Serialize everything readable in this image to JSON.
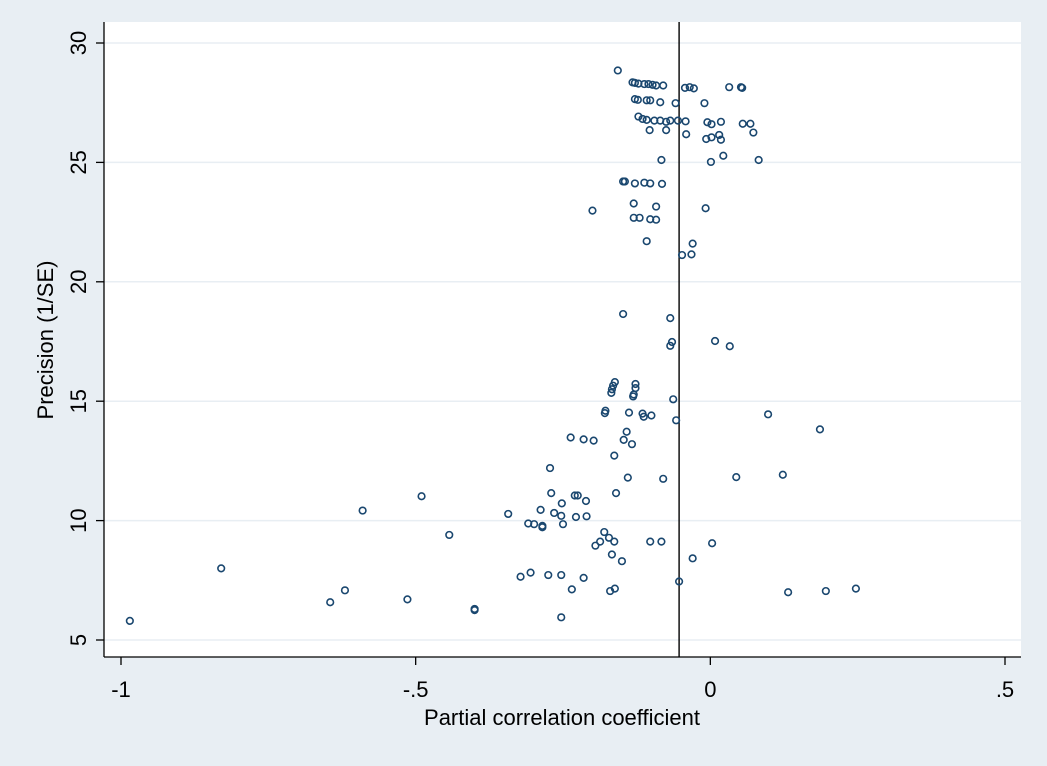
{
  "chart_data": {
    "type": "scatter",
    "title": "",
    "xlabel": "Partial correlation coefficient",
    "ylabel": "Precision (1/SE)",
    "xlim": [
      -1,
      0.5
    ],
    "ylim": [
      5,
      30
    ],
    "xticks": [
      {
        "value": -1,
        "label": "-1"
      },
      {
        "value": -0.5,
        "label": "-.5"
      },
      {
        "value": 0,
        "label": "0"
      },
      {
        "value": 0.5,
        "label": ".5"
      }
    ],
    "yticks": [
      {
        "value": 5,
        "label": "5"
      },
      {
        "value": 10,
        "label": "10"
      },
      {
        "value": 15,
        "label": "15"
      },
      {
        "value": 20,
        "label": "20"
      },
      {
        "value": 25,
        "label": "25"
      },
      {
        "value": 30,
        "label": "30"
      }
    ],
    "grid": "horizontal",
    "reference_line_x": -0.053,
    "colors": {
      "background": "#e8eef3",
      "plot_area": "#ffffff",
      "gridline": "#e8eef3",
      "marker": "#1a476f",
      "reference_line": "#000000"
    },
    "points": [
      [
        -0.157,
        28.85
      ],
      [
        -0.132,
        28.35
      ],
      [
        -0.128,
        28.33
      ],
      [
        -0.122,
        28.3
      ],
      [
        -0.112,
        28.28
      ],
      [
        -0.105,
        28.28
      ],
      [
        -0.098,
        28.25
      ],
      [
        -0.092,
        28.22
      ],
      [
        -0.08,
        28.22
      ],
      [
        -0.043,
        28.12
      ],
      [
        -0.035,
        28.15
      ],
      [
        -0.028,
        28.1
      ],
      [
        0.032,
        28.15
      ],
      [
        0.052,
        28.15
      ],
      [
        0.054,
        28.12
      ],
      [
        -0.128,
        27.65
      ],
      [
        -0.123,
        27.62
      ],
      [
        -0.108,
        27.6
      ],
      [
        -0.102,
        27.6
      ],
      [
        -0.085,
        27.52
      ],
      [
        -0.059,
        27.48
      ],
      [
        -0.01,
        27.48
      ],
      [
        -0.122,
        26.92
      ],
      [
        -0.115,
        26.82
      ],
      [
        -0.108,
        26.78
      ],
      [
        -0.095,
        26.75
      ],
      [
        -0.085,
        26.75
      ],
      [
        -0.075,
        26.7
      ],
      [
        -0.068,
        26.75
      ],
      [
        -0.055,
        26.75
      ],
      [
        -0.042,
        26.72
      ],
      [
        -0.005,
        26.68
      ],
      [
        0.002,
        26.6
      ],
      [
        0.018,
        26.7
      ],
      [
        0.055,
        26.62
      ],
      [
        0.068,
        26.62
      ],
      [
        -0.103,
        26.35
      ],
      [
        -0.075,
        26.35
      ],
      [
        -0.041,
        26.18
      ],
      [
        0.015,
        26.15
      ],
      [
        0.073,
        26.25
      ],
      [
        -0.007,
        25.98
      ],
      [
        0.002,
        26.05
      ],
      [
        0.018,
        25.95
      ],
      [
        0.022,
        25.28
      ],
      [
        -0.083,
        25.1
      ],
      [
        0.001,
        25.02
      ],
      [
        0.082,
        25.1
      ],
      [
        -0.148,
        24.2
      ],
      [
        -0.145,
        24.2
      ],
      [
        -0.128,
        24.12
      ],
      [
        -0.112,
        24.15
      ],
      [
        -0.102,
        24.12
      ],
      [
        -0.082,
        24.1
      ],
      [
        -0.13,
        23.28
      ],
      [
        -0.092,
        23.15
      ],
      [
        -0.2,
        22.98
      ],
      [
        -0.008,
        23.08
      ],
      [
        -0.13,
        22.68
      ],
      [
        -0.12,
        22.68
      ],
      [
        -0.102,
        22.62
      ],
      [
        -0.092,
        22.6
      ],
      [
        -0.108,
        21.7
      ],
      [
        -0.03,
        21.6
      ],
      [
        -0.048,
        21.12
      ],
      [
        -0.032,
        21.15
      ],
      [
        -0.148,
        18.65
      ],
      [
        -0.068,
        18.48
      ],
      [
        0.008,
        17.52
      ],
      [
        -0.065,
        17.48
      ],
      [
        -0.068,
        17.32
      ],
      [
        0.033,
        17.3
      ],
      [
        -0.162,
        15.8
      ],
      [
        -0.165,
        15.65
      ],
      [
        -0.167,
        15.5
      ],
      [
        -0.127,
        15.72
      ],
      [
        -0.127,
        15.55
      ],
      [
        -0.168,
        15.35
      ],
      [
        -0.13,
        15.28
      ],
      [
        -0.131,
        15.2
      ],
      [
        -0.063,
        15.08
      ],
      [
        -0.178,
        14.6
      ],
      [
        -0.179,
        14.5
      ],
      [
        -0.138,
        14.52
      ],
      [
        -0.115,
        14.48
      ],
      [
        -0.113,
        14.35
      ],
      [
        -0.1,
        14.4
      ],
      [
        -0.058,
        14.2
      ],
      [
        0.098,
        14.45
      ],
      [
        0.186,
        13.82
      ],
      [
        -0.142,
        13.72
      ],
      [
        -0.147,
        13.38
      ],
      [
        -0.133,
        13.2
      ],
      [
        -0.237,
        13.48
      ],
      [
        -0.215,
        13.4
      ],
      [
        -0.198,
        13.35
      ],
      [
        -0.163,
        12.72
      ],
      [
        -0.272,
        12.2
      ],
      [
        -0.14,
        11.8
      ],
      [
        -0.08,
        11.75
      ],
      [
        0.044,
        11.82
      ],
      [
        0.123,
        11.92
      ],
      [
        -0.27,
        11.15
      ],
      [
        -0.16,
        11.15
      ],
      [
        -0.23,
        11.05
      ],
      [
        -0.225,
        11.05
      ],
      [
        -0.211,
        10.82
      ],
      [
        -0.252,
        10.72
      ],
      [
        -0.49,
        11.02
      ],
      [
        -0.59,
        10.42
      ],
      [
        -0.343,
        10.28
      ],
      [
        -0.265,
        10.32
      ],
      [
        -0.253,
        10.2
      ],
      [
        -0.228,
        10.15
      ],
      [
        -0.21,
        10.18
      ],
      [
        -0.288,
        10.45
      ],
      [
        -0.309,
        9.88
      ],
      [
        -0.299,
        9.85
      ],
      [
        -0.285,
        9.78
      ],
      [
        -0.285,
        9.72
      ],
      [
        -0.25,
        9.85
      ],
      [
        -0.443,
        9.4
      ],
      [
        -0.18,
        9.52
      ],
      [
        -0.172,
        9.28
      ],
      [
        -0.163,
        9.12
      ],
      [
        -0.187,
        9.12
      ],
      [
        -0.195,
        8.95
      ],
      [
        -0.102,
        9.12
      ],
      [
        -0.083,
        9.12
      ],
      [
        0.003,
        9.05
      ],
      [
        -0.167,
        8.58
      ],
      [
        -0.15,
        8.3
      ],
      [
        -0.03,
        8.42
      ],
      [
        -0.83,
        8.0
      ],
      [
        -0.305,
        7.82
      ],
      [
        -0.322,
        7.65
      ],
      [
        -0.275,
        7.72
      ],
      [
        -0.253,
        7.72
      ],
      [
        -0.215,
        7.6
      ],
      [
        -0.235,
        7.12
      ],
      [
        -0.17,
        7.05
      ],
      [
        -0.162,
        7.15
      ],
      [
        -0.053,
        7.45
      ],
      [
        -0.62,
        7.08
      ],
      [
        -0.645,
        6.58
      ],
      [
        -0.514,
        6.7
      ],
      [
        -0.4,
        6.3
      ],
      [
        -0.4,
        6.25
      ],
      [
        0.132,
        7.0
      ],
      [
        0.196,
        7.05
      ],
      [
        0.247,
        7.15
      ],
      [
        -0.253,
        5.95
      ],
      [
        -0.985,
        5.8
      ]
    ]
  }
}
